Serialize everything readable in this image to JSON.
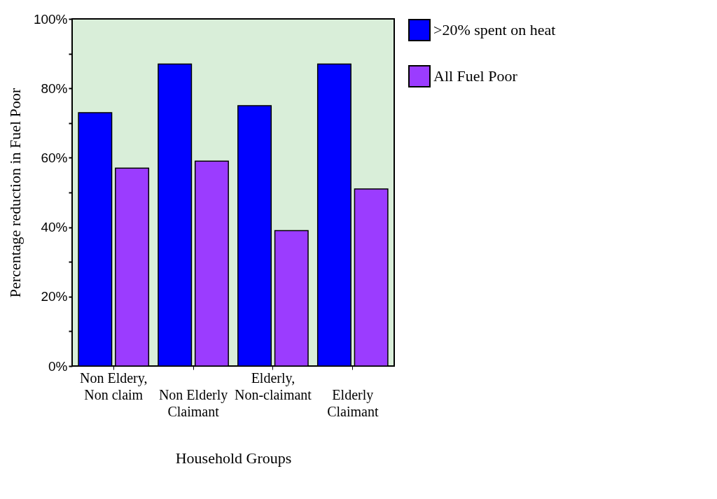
{
  "chart_data": {
    "type": "bar",
    "xlabel": "Household Groups",
    "ylabel": "Percentage reduction in Fuel Poor",
    "categories": [
      "Non Eldery,\nNon claim",
      "Non Elderly\nClaimant",
      "Elderly,\nNon-claimant",
      "Elderly\nClaimant"
    ],
    "series": [
      {
        "name": ">20% spent on heat",
        "color": "#0000ff",
        "values": [
          73,
          87,
          75,
          87
        ]
      },
      {
        "name": "All Fuel Poor",
        "color": "#9b3cff",
        "values": [
          57,
          59,
          39,
          51
        ]
      }
    ],
    "ylim": [
      0,
      100
    ],
    "yticks": [
      {
        "value": 0,
        "label": "0%"
      },
      {
        "value": 10,
        "label": null
      },
      {
        "value": 20,
        "label": "20%"
      },
      {
        "value": 30,
        "label": null
      },
      {
        "value": 40,
        "label": "40%"
      },
      {
        "value": 50,
        "label": null
      },
      {
        "value": 60,
        "label": "60%"
      },
      {
        "value": 70,
        "label": null
      },
      {
        "value": 80,
        "label": "80%"
      },
      {
        "value": 90,
        "label": null
      },
      {
        "value": 100,
        "label": "100%"
      }
    ],
    "grid": false,
    "legend": "right"
  }
}
